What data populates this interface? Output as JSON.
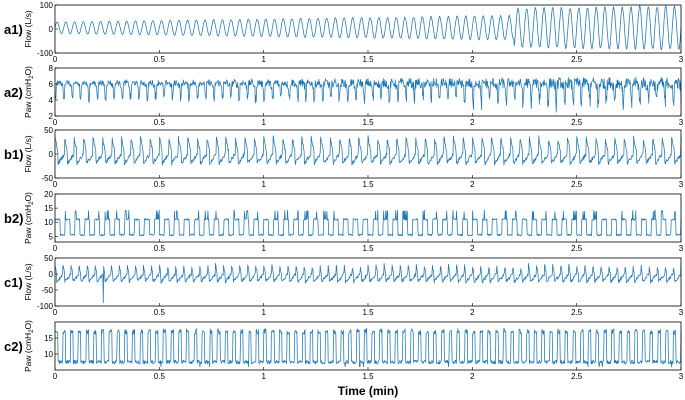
{
  "chart_data": [
    {
      "type": "line",
      "label": "a1)",
      "ylabel": "Flow (L/s)",
      "yticks": [
        -100,
        0,
        100
      ],
      "ylim": [
        -100,
        100
      ],
      "xlim": [
        0,
        3
      ],
      "xticks": [
        0,
        0.5,
        1,
        1.5,
        2,
        2.5,
        3
      ],
      "series": [
        {
          "values": [
            {
              "x": 0,
              "y": 2
            },
            {
              "x": 0.5,
              "y": 5
            },
            {
              "x": 1,
              "y": 4
            },
            {
              "x": 1.5,
              "y": 6
            },
            {
              "x": 2,
              "y": 10
            },
            {
              "x": 2.5,
              "y": 8
            },
            {
              "x": 3,
              "y": 5
            }
          ]
        }
      ]
    },
    {
      "type": "line",
      "label": "a2)",
      "ylabel": "Paw (cmH2O)",
      "ylabel_main": "Paw (cmH",
      "ylabel_sub": "2",
      "ylabel_end": "O)",
      "yticks": [
        2,
        4,
        6,
        8
      ],
      "ylim": [
        2,
        8
      ],
      "xlim": [
        0,
        3
      ],
      "xticks": [
        0,
        0.5,
        1,
        1.5,
        2,
        2.5,
        3
      ],
      "series": [
        {
          "values": [
            {
              "x": 0,
              "y": 5.5
            },
            {
              "x": 0.5,
              "y": 5.6
            },
            {
              "x": 1,
              "y": 5.5
            },
            {
              "x": 1.5,
              "y": 5.5
            },
            {
              "x": 2,
              "y": 5.4
            },
            {
              "x": 2.5,
              "y": 5.5
            },
            {
              "x": 3,
              "y": 5.6
            }
          ]
        }
      ]
    },
    {
      "type": "line",
      "label": "b1)",
      "ylabel": "Flow (L/s)",
      "yticks": [
        -50,
        0,
        50
      ],
      "ylim": [
        -50,
        50
      ],
      "xlim": [
        0,
        3
      ],
      "xticks": [
        0,
        0.5,
        1,
        1.5,
        2,
        2.5,
        3
      ],
      "series": [
        {
          "values": [
            {
              "x": 0,
              "y": 5
            },
            {
              "x": 0.5,
              "y": 8
            },
            {
              "x": 1,
              "y": 5
            },
            {
              "x": 1.5,
              "y": 6
            },
            {
              "x": 2,
              "y": 4
            },
            {
              "x": 2.5,
              "y": 6
            },
            {
              "x": 3,
              "y": 5
            }
          ]
        }
      ]
    },
    {
      "type": "line",
      "label": "b2)",
      "ylabel": "Paw (cmH2O)",
      "ylabel_main": "Paw (cmH",
      "ylabel_sub": "2",
      "ylabel_end": "O)",
      "yticks": [
        5,
        10,
        15,
        20
      ],
      "ylim": [
        3,
        20
      ],
      "xlim": [
        0,
        3
      ],
      "xticks": [
        0,
        0.5,
        1,
        1.5,
        2,
        2.5,
        3
      ],
      "series": [
        {
          "values": [
            {
              "x": 0,
              "y": 7
            },
            {
              "x": 0.5,
              "y": 8
            },
            {
              "x": 1,
              "y": 8
            },
            {
              "x": 1.5,
              "y": 9
            },
            {
              "x": 2,
              "y": 9
            },
            {
              "x": 2.5,
              "y": 9
            },
            {
              "x": 3,
              "y": 8
            }
          ]
        }
      ]
    },
    {
      "type": "line",
      "label": "c1)",
      "ylabel": "Flow (L/s)",
      "yticks": [
        -100,
        -50,
        0,
        50
      ],
      "ylim": [
        -100,
        50
      ],
      "xlim": [
        0,
        3
      ],
      "xticks": [
        0,
        0.5,
        1,
        1.5,
        2,
        2.5,
        3
      ],
      "series": [
        {
          "values": [
            {
              "x": 0,
              "y": 10
            },
            {
              "x": 0.5,
              "y": 5
            },
            {
              "x": 1,
              "y": 5
            },
            {
              "x": 1.5,
              "y": 8
            },
            {
              "x": 2,
              "y": 7
            },
            {
              "x": 2.5,
              "y": 7
            },
            {
              "x": 3,
              "y": 6
            }
          ]
        }
      ]
    },
    {
      "type": "line",
      "label": "c2)",
      "ylabel": "Paw (cmH2O)",
      "ylabel_main": "Paw (cmH",
      "ylabel_sub": "2",
      "ylabel_end": "O)",
      "yticks": [
        10,
        15
      ],
      "ylim": [
        5,
        20
      ],
      "xlim": [
        0,
        3
      ],
      "xticks": [
        0,
        0.5,
        1,
        1.5,
        2,
        2.5,
        3
      ],
      "xlabel": "Time (min)",
      "series": [
        {
          "values": [
            {
              "x": 0,
              "y": 11
            },
            {
              "x": 0.5,
              "y": 12
            },
            {
              "x": 1,
              "y": 11
            },
            {
              "x": 1.5,
              "y": 12
            },
            {
              "x": 2,
              "y": 12
            },
            {
              "x": 2.5,
              "y": 12
            },
            {
              "x": 3,
              "y": 12
            }
          ]
        }
      ]
    }
  ]
}
